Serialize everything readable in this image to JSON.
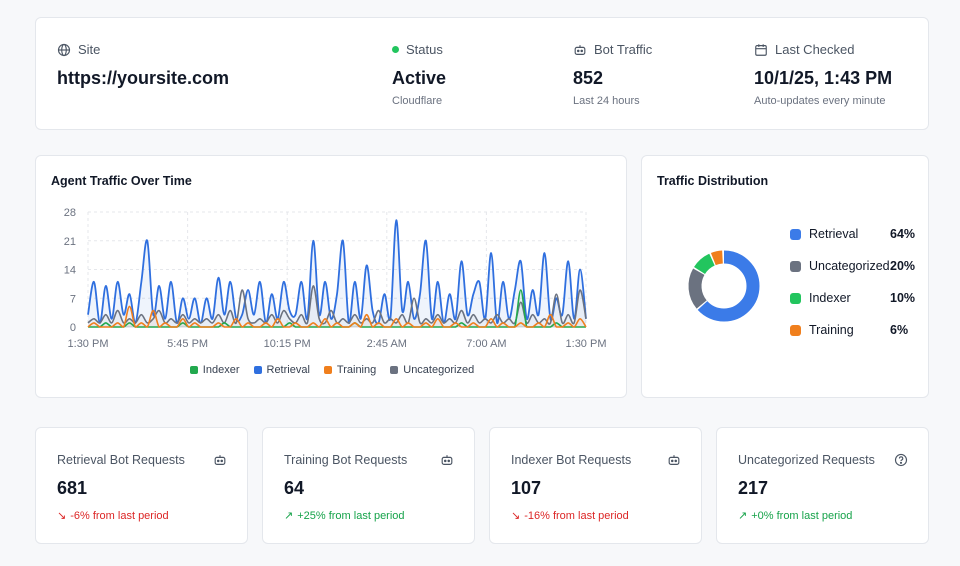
{
  "summary": {
    "site": {
      "label": "Site",
      "value": "https://yoursite.com",
      "icon": "globe-icon"
    },
    "status": {
      "label": "Status",
      "value": "Active",
      "sub": "Cloudflare",
      "color": "#22c55e"
    },
    "bot_traffic": {
      "label": "Bot Traffic",
      "value": "852",
      "sub": "Last 24 hours",
      "icon": "bot-icon"
    },
    "last_checked": {
      "label": "Last Checked",
      "value": "10/1/25, 1:43 PM",
      "sub": "Auto-updates every minute",
      "icon": "calendar-icon"
    }
  },
  "traffic_chart": {
    "title": "Agent Traffic Over Time"
  },
  "distribution": {
    "title": "Traffic Distribution",
    "items": [
      {
        "label": "Retrieval",
        "pct": "64%",
        "value": 64,
        "color": "#3b7be8"
      },
      {
        "label": "Uncategorized",
        "pct": "20%",
        "value": 20,
        "color": "#6b7280"
      },
      {
        "label": "Indexer",
        "pct": "10%",
        "value": 10,
        "color": "#22c55e"
      },
      {
        "label": "Training",
        "pct": "6%",
        "value": 6,
        "color": "#f07f1d"
      }
    ]
  },
  "metrics": [
    {
      "title": "Retrieval Bot Requests",
      "value": "681",
      "trend": "-6% from last period",
      "direction": "down",
      "icon": "bot-icon"
    },
    {
      "title": "Training Bot Requests",
      "value": "64",
      "trend": "+25% from last period",
      "direction": "up",
      "icon": "bot-icon"
    },
    {
      "title": "Indexer Bot Requests",
      "value": "107",
      "trend": "-16% from last period",
      "direction": "down",
      "icon": "bot-icon"
    },
    {
      "title": "Uncategorized Requests",
      "value": "217",
      "trend": "+0% from last period",
      "direction": "up",
      "icon": "help-circle-icon"
    }
  ],
  "chart_data": {
    "type": "line",
    "title": "Agent Traffic Over Time",
    "xlabel": "",
    "ylabel": "",
    "ylim": [
      0,
      28
    ],
    "yticks": [
      "0",
      "7",
      "14",
      "21",
      "28"
    ],
    "xticks": [
      "1:30 PM",
      "5:45 PM",
      "10:15 PM",
      "2:45 AM",
      "7:00 AM",
      "1:30 PM"
    ],
    "legend": [
      "Indexer",
      "Retrieval",
      "Training",
      "Uncategorized"
    ],
    "series": [
      {
        "name": "Retrieval",
        "color": "#2f6fdf",
        "values": [
          3,
          11,
          1,
          10,
          2,
          11,
          3,
          8,
          1,
          11,
          21,
          3,
          10,
          2,
          11,
          1,
          7,
          2,
          7,
          1,
          7,
          2,
          12,
          3,
          11,
          2,
          3,
          9,
          3,
          11,
          1,
          8,
          2,
          11,
          4,
          3,
          11,
          2,
          21,
          3,
          11,
          2,
          8,
          21,
          1,
          11,
          2,
          15,
          4,
          1,
          8,
          2,
          26,
          4,
          11,
          2,
          8,
          21,
          2,
          11,
          1,
          8,
          2,
          16,
          3,
          8,
          11,
          2,
          18,
          1,
          11,
          2,
          9,
          16,
          2,
          9,
          3,
          18,
          2,
          7,
          3,
          16,
          2,
          14,
          2
        ]
      },
      {
        "name": "Uncategorized",
        "color": "#6b7280",
        "values": [
          1,
          2,
          1,
          3,
          1,
          4,
          1,
          2,
          1,
          3,
          1,
          2,
          4,
          1,
          2,
          1,
          3,
          1,
          2,
          1,
          2,
          1,
          3,
          1,
          4,
          1,
          9,
          2,
          1,
          2,
          1,
          3,
          1,
          4,
          2,
          1,
          3,
          1,
          10,
          2,
          1,
          4,
          1,
          2,
          1,
          3,
          1,
          2,
          1,
          4,
          1,
          2,
          1,
          3,
          1,
          7,
          1,
          2,
          1,
          3,
          1,
          2,
          1,
          4,
          1,
          3,
          1,
          2,
          1,
          3,
          1,
          2,
          1,
          6,
          1,
          3,
          1,
          2,
          1,
          8,
          1,
          3,
          1,
          9,
          2
        ]
      },
      {
        "name": "Indexer",
        "color": "#22a94e",
        "values": [
          0,
          0,
          0,
          1,
          0,
          0,
          0,
          1,
          0,
          0,
          0,
          0,
          0,
          0,
          0,
          0,
          1,
          0,
          0,
          0,
          0,
          0,
          0,
          1,
          0,
          0,
          0,
          0,
          0,
          0,
          0,
          0,
          0,
          0,
          1,
          0,
          0,
          0,
          0,
          0,
          0,
          0,
          0,
          0,
          0,
          1,
          0,
          0,
          0,
          0,
          0,
          0,
          0,
          0,
          0,
          0,
          0,
          0,
          0,
          0,
          0,
          0,
          0,
          1,
          0,
          0,
          0,
          0,
          0,
          0,
          0,
          0,
          0,
          9,
          0,
          0,
          0,
          0,
          0,
          1,
          0,
          0,
          0,
          0,
          0
        ]
      },
      {
        "name": "Training",
        "color": "#f07f1d",
        "values": [
          0,
          1,
          0,
          0,
          0,
          1,
          0,
          5,
          0,
          1,
          0,
          4,
          0,
          1,
          0,
          0,
          2,
          0,
          1,
          0,
          0,
          0,
          1,
          0,
          0,
          2,
          0,
          1,
          0,
          0,
          1,
          0,
          2,
          0,
          0,
          1,
          0,
          0,
          1,
          0,
          2,
          0,
          1,
          0,
          0,
          1,
          0,
          3,
          0,
          1,
          0,
          0,
          2,
          0,
          1,
          0,
          0,
          1,
          0,
          2,
          0,
          0,
          1,
          0,
          0,
          1,
          0,
          0,
          2,
          0,
          1,
          0,
          0,
          1,
          0,
          0,
          1,
          0,
          3,
          0,
          0,
          1,
          0,
          2,
          0
        ]
      }
    ]
  }
}
